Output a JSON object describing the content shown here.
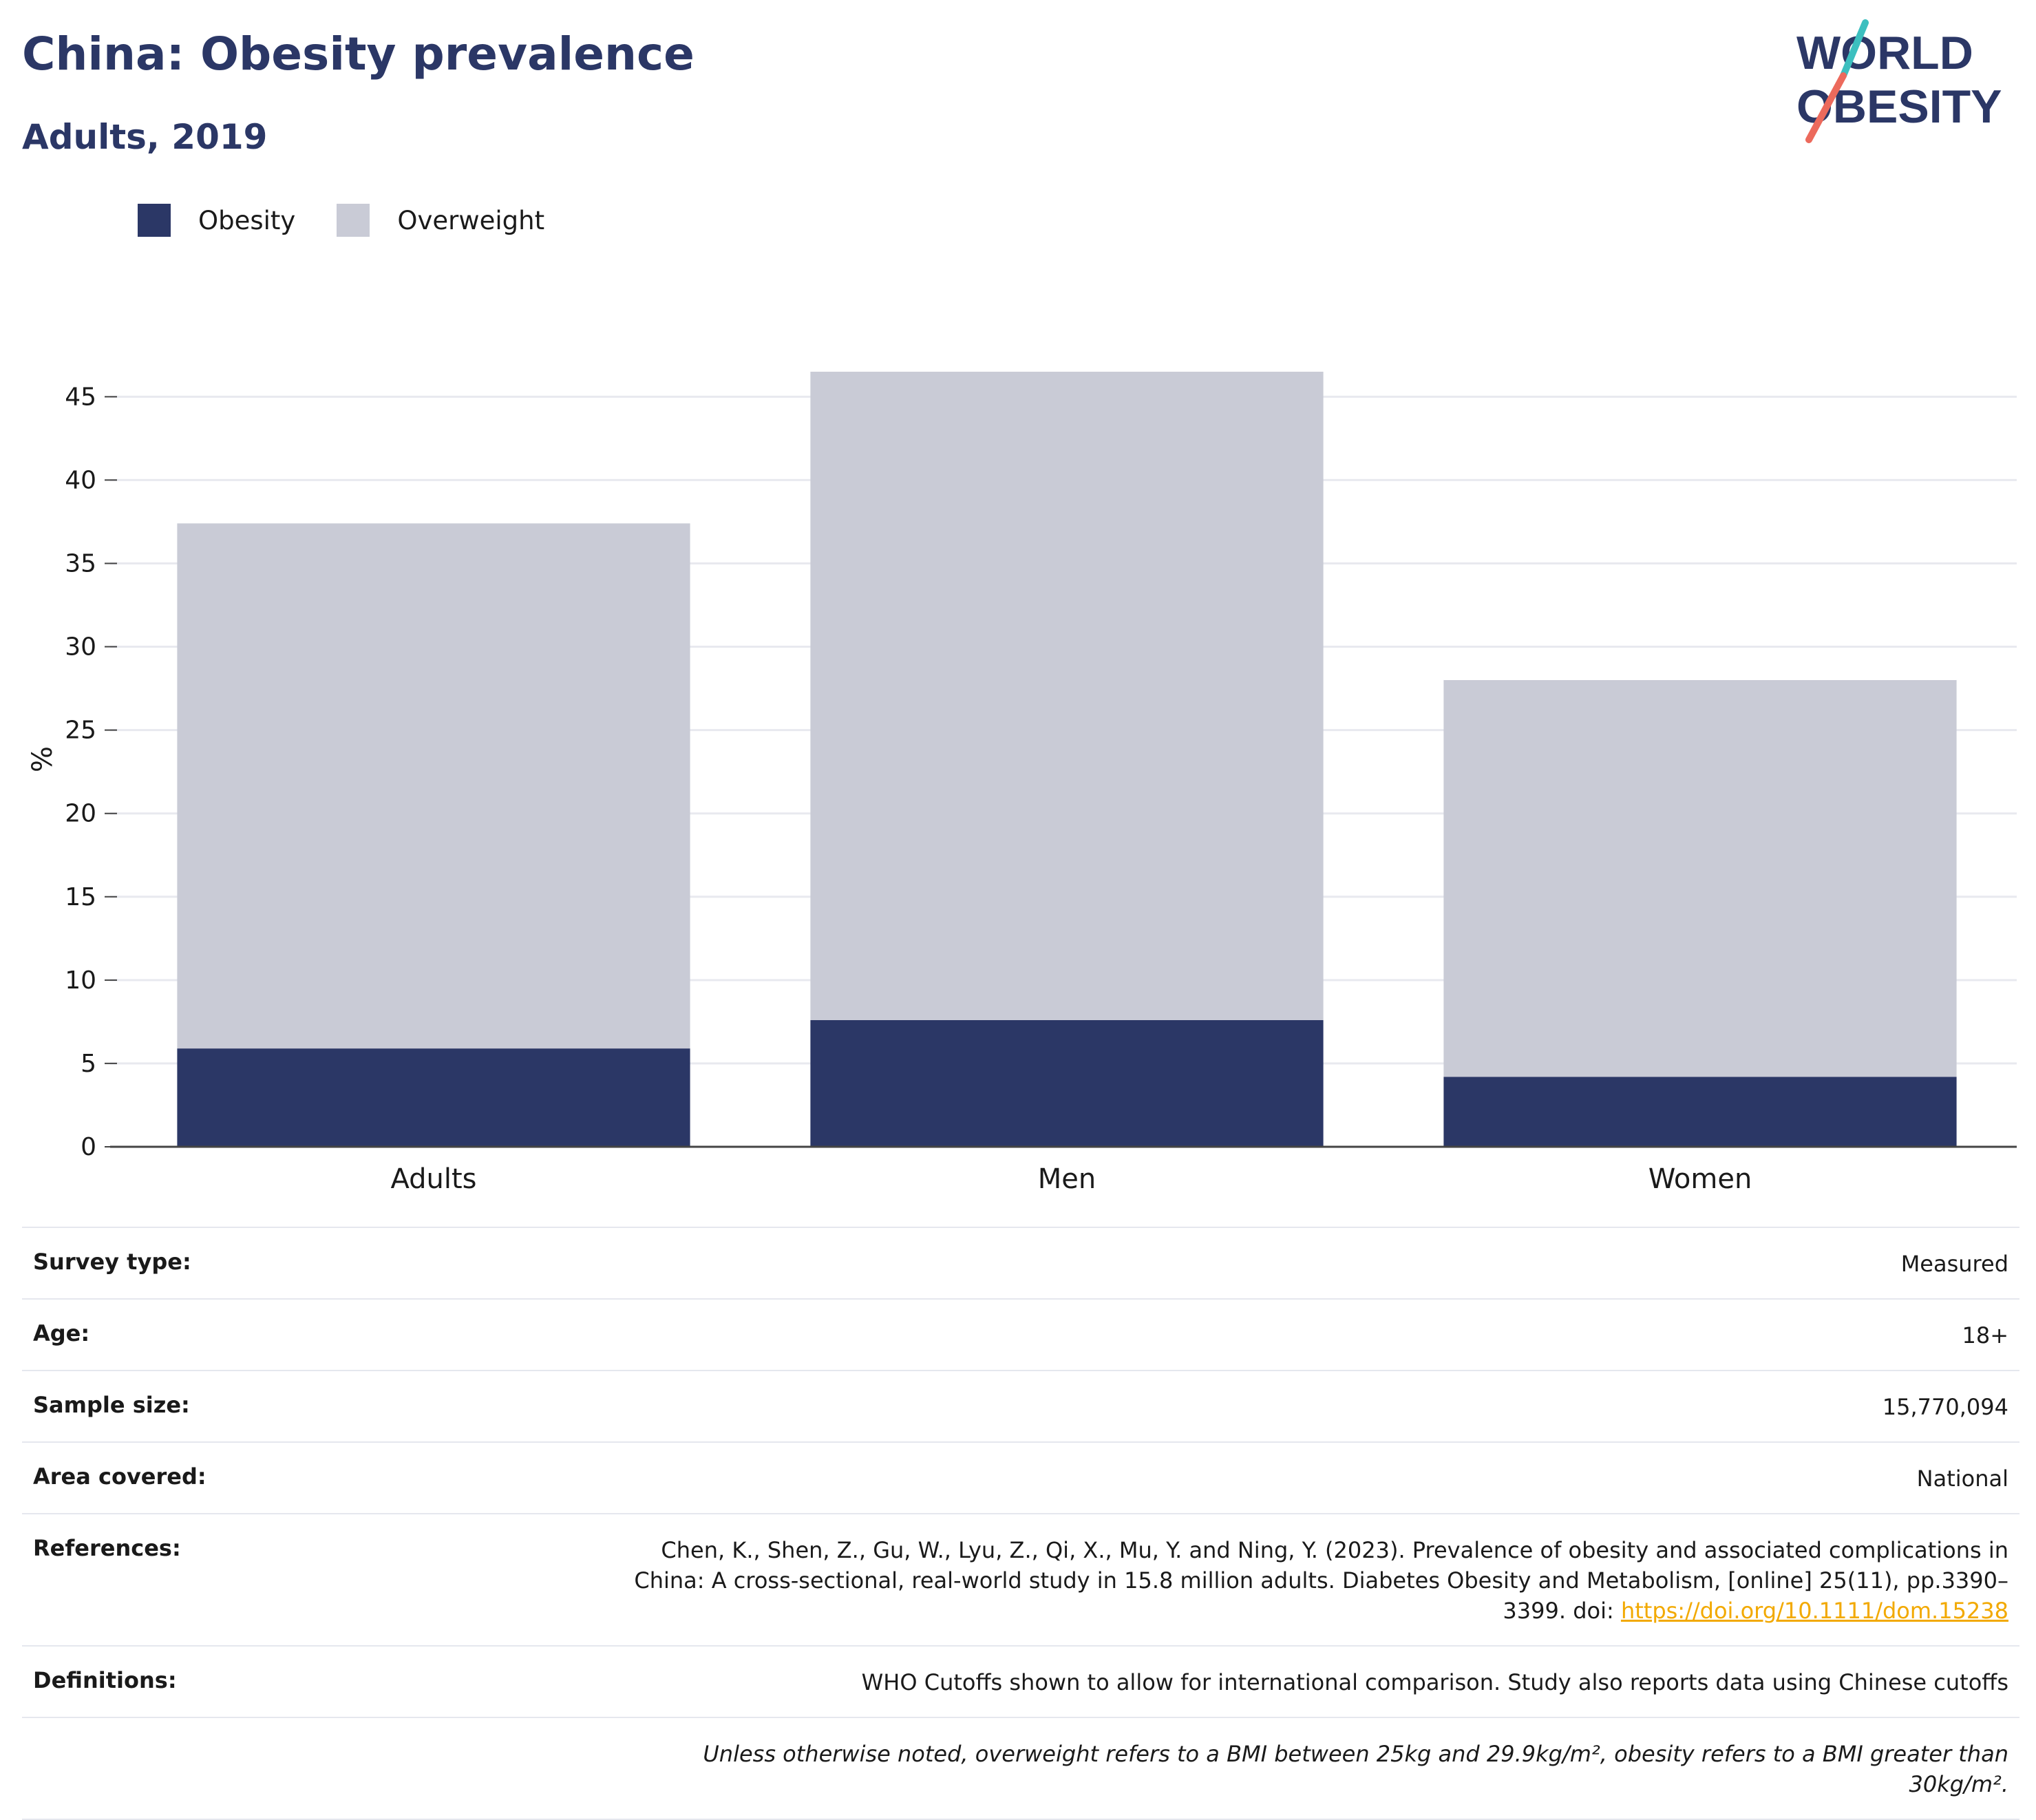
{
  "header": {
    "title": "China: Obesity prevalence",
    "subtitle": "Adults, 2019"
  },
  "logo": {
    "line1": "WORLD",
    "line2": "OBESITY"
  },
  "colors": {
    "obesity": "#2b3766",
    "overweight": "#c9cbd6",
    "accent_link": "#f2a900",
    "logo_teal": "#3cbfbf",
    "logo_coral": "#ec6a5c"
  },
  "chart_data": {
    "type": "bar",
    "stacked": true,
    "categories": [
      "Adults",
      "Men",
      "Women"
    ],
    "series": [
      {
        "name": "Obesity",
        "values": [
          5.9,
          7.6,
          4.2
        ]
      },
      {
        "name": "Overweight",
        "values": [
          31.5,
          38.9,
          23.8
        ]
      }
    ],
    "ylabel": "%",
    "ylim": [
      0,
      46.5
    ],
    "yticks": [
      0,
      5,
      10,
      15,
      20,
      25,
      30,
      35,
      40,
      45
    ],
    "grid": true,
    "legend": "top-left"
  },
  "info": {
    "survey_type": {
      "label": "Survey type:",
      "value": "Measured"
    },
    "age": {
      "label": "Age:",
      "value": "18+"
    },
    "sample_size": {
      "label": "Sample size:",
      "value": "15,770,094"
    },
    "area_covered": {
      "label": "Area covered:",
      "value": "National"
    },
    "references": {
      "label": "References:",
      "text": "Chen, K., Shen, Z., Gu, W., Lyu, Z., Qi, X., Mu, Y. and Ning, Y. (2023). Prevalence of obesity and associated complications in China: A cross-sectional, real-world study in 15.8 million adults. Diabetes Obesity and Metabolism, [online] 25(11), pp.3390–3399. doi:",
      "link": "https://doi.org/10.1111/dom.15238"
    },
    "definitions": {
      "label": "Definitions:",
      "value": "WHO Cutoffs shown to allow for international comparison. Study also reports data using Chinese cutoffs"
    },
    "note": "Unless otherwise noted, overweight refers to a BMI between 25kg and 29.9kg/m², obesity refers to a BMI greater than 30kg/m²."
  }
}
